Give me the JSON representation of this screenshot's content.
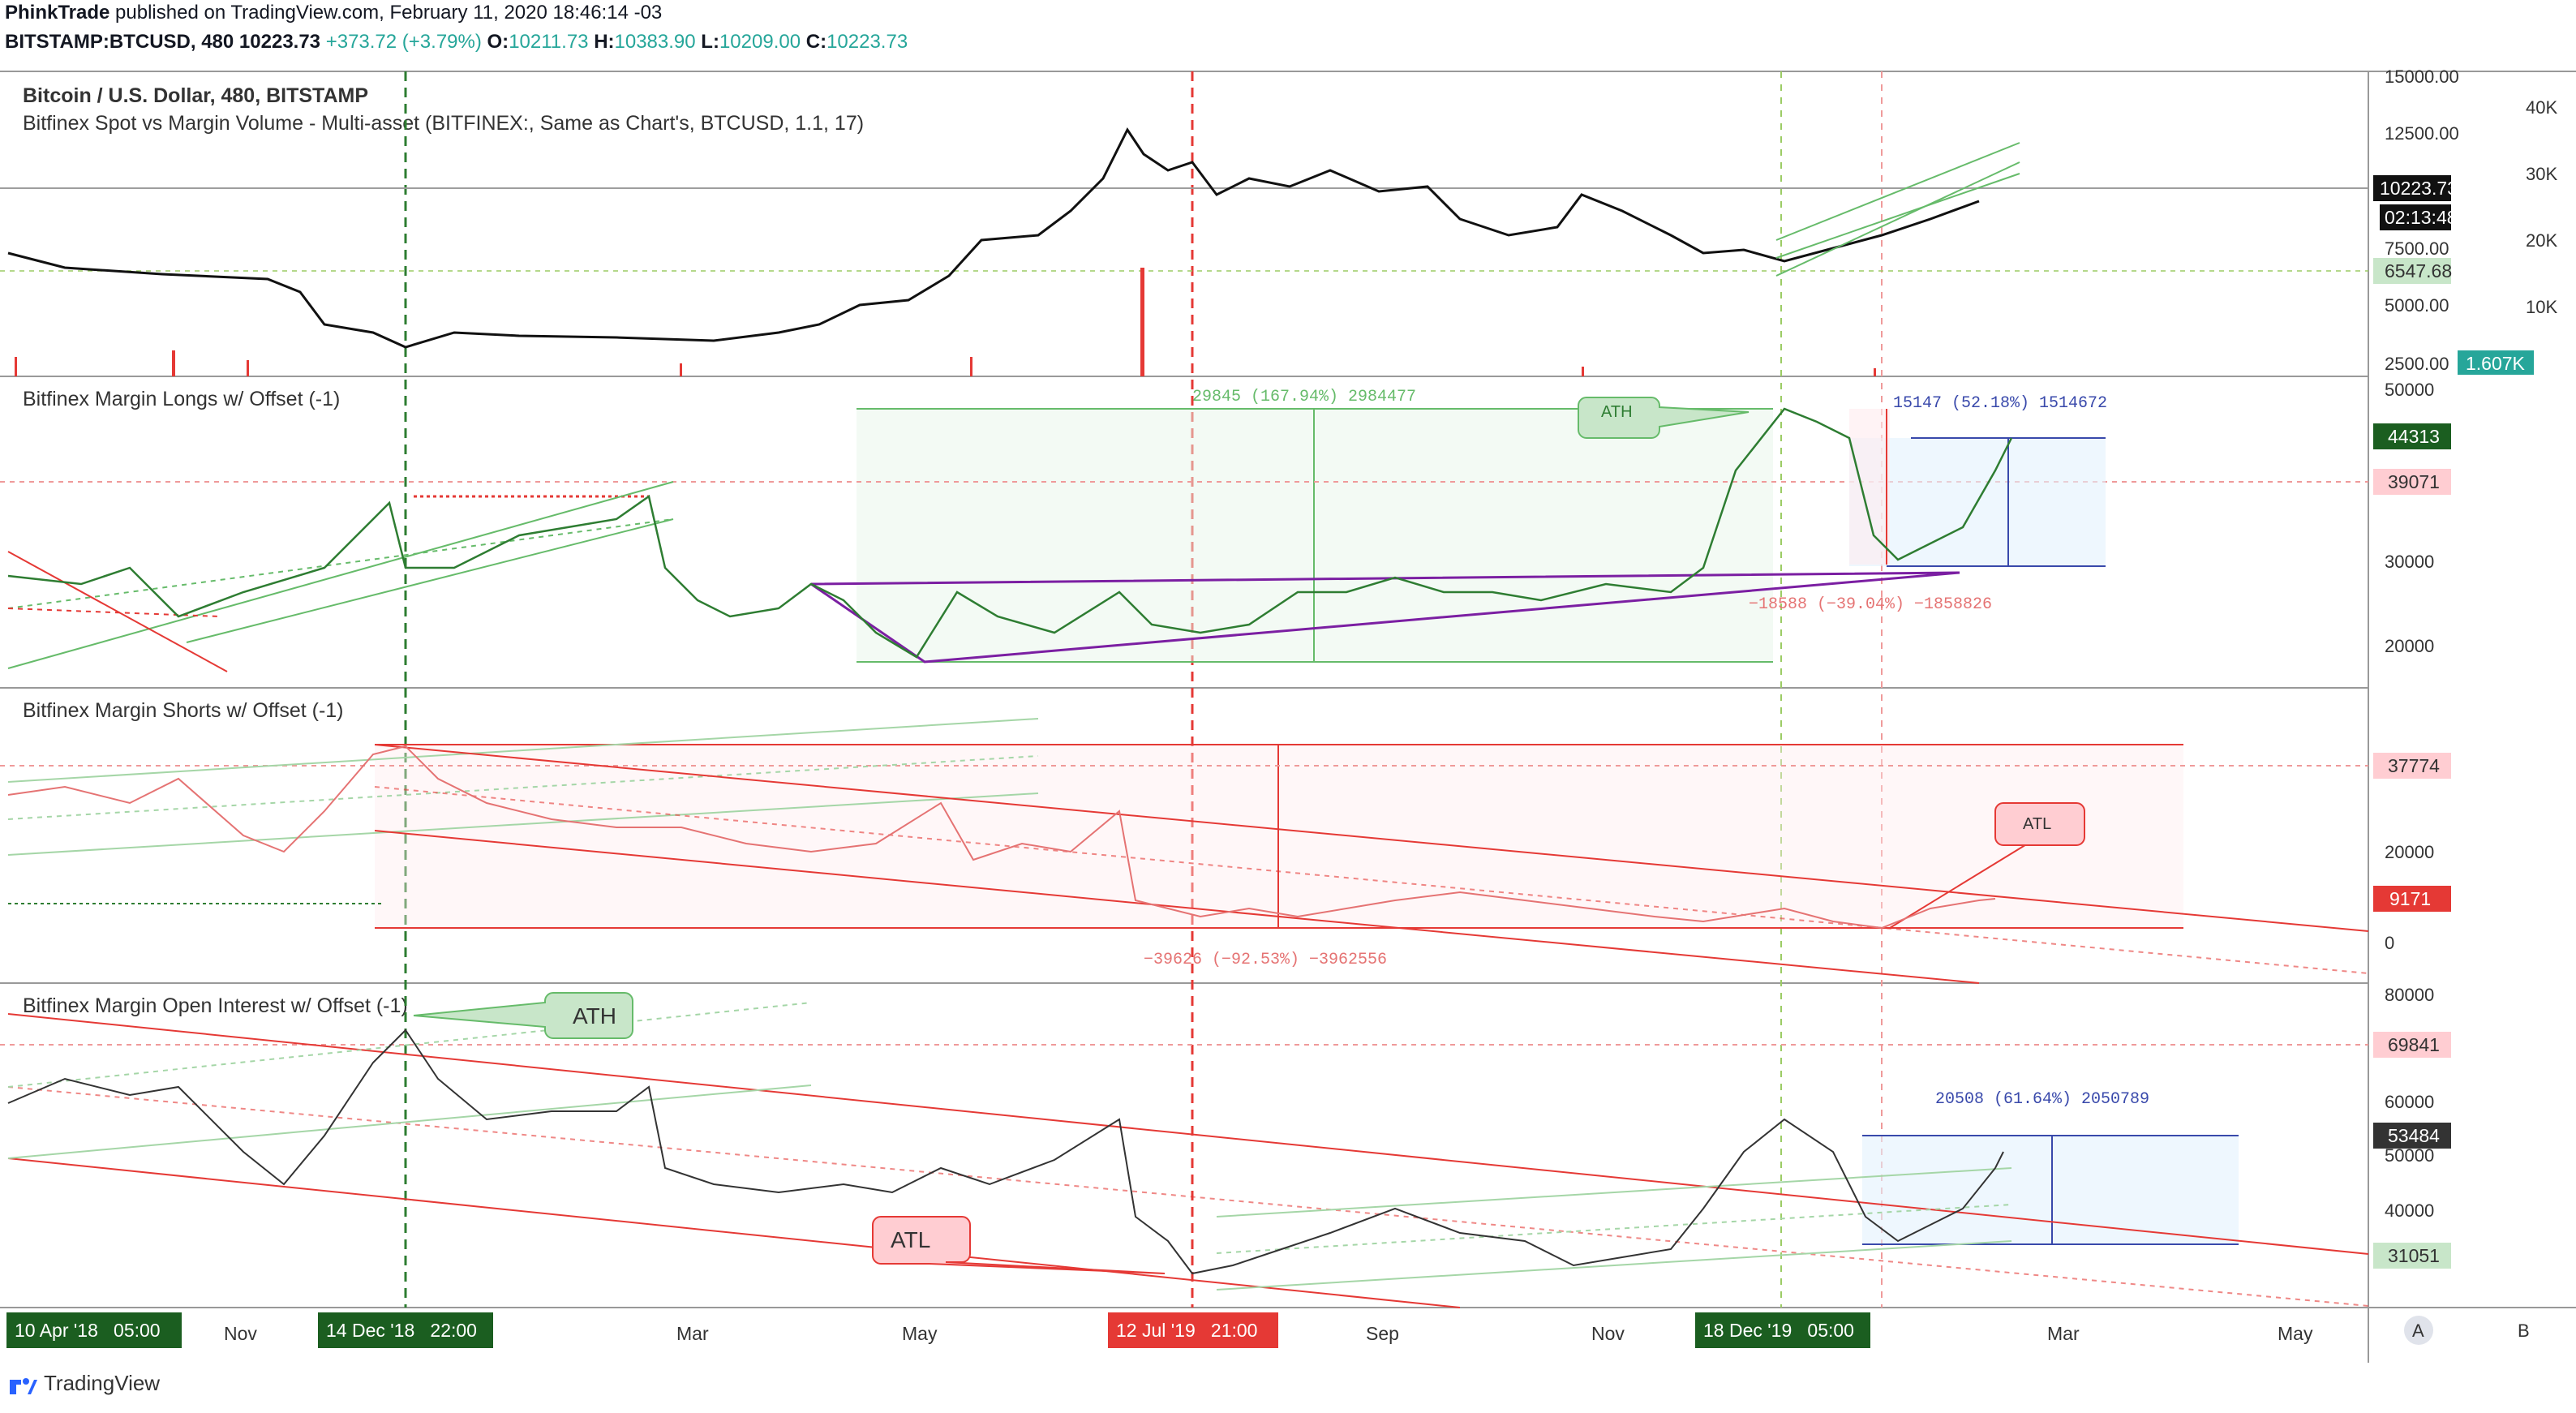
{
  "header": {
    "author": "PhinkTrade",
    "published": "published on TradingView.com, February 11, 2020 18:46:14 -03",
    "symbol": "BITSTAMP:BTCUSD, 480",
    "last": "10223.73",
    "change": "+373.72 (+3.79%)",
    "o_label": "O:",
    "o": "10211.73",
    "h_label": "H:",
    "h": "10383.90",
    "l_label": "L:",
    "l": "10209.00",
    "c_label": "C:",
    "c": "10223.73"
  },
  "panes": [
    {
      "title": "Bitcoin / U.S. Dollar, 480, BITSTAMP",
      "subtitle": "Bitfinex Spot vs Margin Volume - Multi-asset (BITFINEX:, Same as Chart's, BTCUSD, 1.1, 17)"
    },
    {
      "title": "Bitfinex Margin Longs w/ Offset (-1)"
    },
    {
      "title": "Bitfinex Margin Shorts w/ Offset (-1)"
    },
    {
      "title": "Bitfinex Margin Open Interest w/ Offset (-1)"
    }
  ],
  "price_axis": {
    "left_ticks": [
      "15000.00",
      "12500.00",
      "10000.00",
      "7500.00",
      "5000.00",
      "2500.00"
    ],
    "right_ticks": [
      "40K",
      "30K",
      "20K",
      "10K"
    ],
    "current_price": "10223.73",
    "countdown": "02:13:48",
    "support": "6547.68",
    "volume": "1.607K"
  },
  "longs_axis": {
    "ticks": [
      "50000",
      "40000",
      "30000",
      "20000"
    ],
    "labels": [
      "44313",
      "39071"
    ]
  },
  "shorts_axis": {
    "ticks": [
      "20000",
      "0"
    ],
    "labels": [
      "37774",
      "9171"
    ]
  },
  "oi_axis": {
    "ticks": [
      "80000",
      "60000",
      "50000",
      "40000"
    ],
    "labels": [
      "69841",
      "53484",
      "31051"
    ]
  },
  "annotations": {
    "longs_range": "29845 (167.94%) 2984477",
    "longs_ath": "ATH",
    "longs_up": "15147 (52.18%) 1514672",
    "longs_down": "−18588 (−39.04%) −1858826",
    "shorts_drop": "−39626 (−92.53%) −3962556",
    "shorts_atl": "ATL",
    "oi_ath": "ATH",
    "oi_atl": "ATL",
    "oi_up": "20508 (61.64%) 2050789"
  },
  "time_axis": {
    "ticks": [
      "Nov",
      "Mar",
      "May",
      "Sep",
      "Nov",
      "Mar",
      "May"
    ],
    "markers": [
      "10 Apr '18   05:00",
      "14 Dec '18   22:00",
      "12 Jul '19   21:00",
      "18 Dec '19   05:00"
    ],
    "buttons": [
      "A",
      "B"
    ]
  },
  "footer": {
    "brand": "TradingView"
  },
  "colors": {
    "green": "#388e3c",
    "red": "#e53935",
    "blue": "#3949ab",
    "purple": "#7b1fa2"
  },
  "chart_data": [
    {
      "type": "line",
      "title": "Bitcoin / U.S. Dollar, 480, BITSTAMP",
      "x": [
        "2018-04",
        "2018-06",
        "2018-08",
        "2018-10",
        "2018-11",
        "2018-12",
        "2019-02",
        "2019-04",
        "2019-05",
        "2019-06",
        "2019-07",
        "2019-08",
        "2019-09",
        "2019-10",
        "2019-11",
        "2019-12",
        "2020-01",
        "2020-02"
      ],
      "series": [
        {
          "values": [
            8000,
            6600,
            6400,
            6500,
            5600,
            3600,
            3600,
            4200,
            6500,
            9000,
            11500,
            10500,
            9800,
            8300,
            8000,
            7200,
            8300,
            10223
          ]
        }
      ],
      "ylim": [
        2500,
        15000
      ]
    },
    {
      "type": "line",
      "title": "Bitfinex Margin Longs w/ Offset (-1)",
      "x": [
        "2018-04",
        "2018-08",
        "2018-12",
        "2019-02",
        "2019-04",
        "2019-06",
        "2019-08",
        "2019-10",
        "2019-12",
        "2020-01",
        "2020-02"
      ],
      "series": [
        {
          "values": [
            27000,
            25000,
            38000,
            22000,
            23000,
            27000,
            25000,
            28000,
            45000,
            30000,
            44313
          ]
        }
      ],
      "ylim": [
        15000,
        50000
      ]
    },
    {
      "type": "line",
      "title": "Bitfinex Margin Shorts w/ Offset (-1)",
      "x": [
        "2018-04",
        "2018-08",
        "2018-12",
        "2019-02",
        "2019-04",
        "2019-06",
        "2019-08",
        "2019-10",
        "2019-12",
        "2020-01",
        "2020-02"
      ],
      "series": [
        {
          "values": [
            30000,
            32000,
            38000,
            27000,
            28000,
            33000,
            5000,
            6000,
            6000,
            4000,
            9171
          ]
        }
      ],
      "ylim": [
        -5000,
        45000
      ]
    },
    {
      "type": "line",
      "title": "Bitfinex Margin Open Interest w/ Offset (-1)",
      "x": [
        "2018-04",
        "2018-08",
        "2018-12",
        "2019-02",
        "2019-04",
        "2019-06",
        "2019-08",
        "2019-10",
        "2019-12",
        "2020-01",
        "2020-02"
      ],
      "series": [
        {
          "values": [
            62000,
            60000,
            70000,
            55000,
            52000,
            58000,
            33000,
            38000,
            57000,
            40000,
            53484
          ]
        }
      ],
      "ylim": [
        30000,
        80000
      ]
    }
  ]
}
